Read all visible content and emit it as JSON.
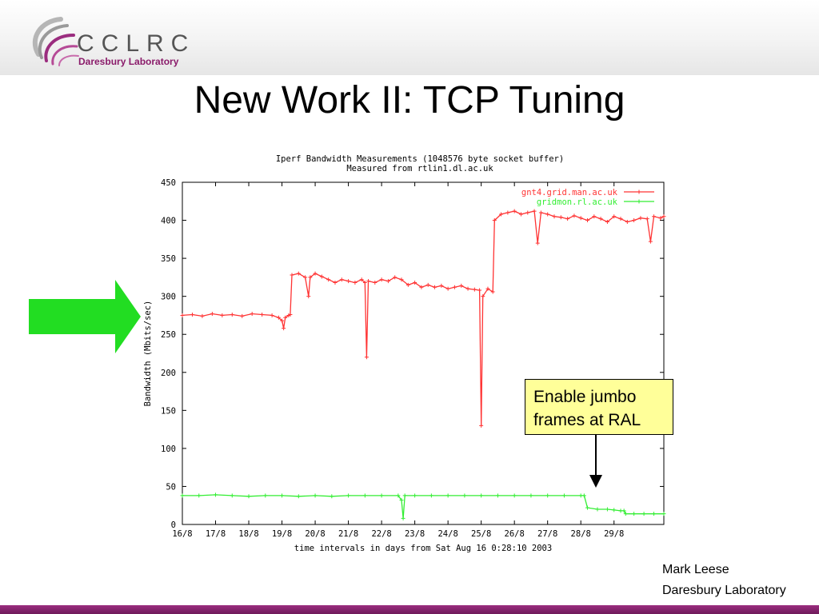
{
  "logo": {
    "word": "CCLRC",
    "subtitle": "Daresbury Laboratory",
    "colors": {
      "primary": "#8a1b6a",
      "text": "#555555"
    }
  },
  "slide": {
    "title": "New Work II: TCP Tuning"
  },
  "arrow": {
    "icon": "green-right-arrow-icon",
    "color": "#22dd22"
  },
  "callout": {
    "line1": "Enable jumbo",
    "line2": "frames at RAL",
    "background": "#ffff99"
  },
  "author": {
    "name": "Mark Leese",
    "org": "Daresbury Laboratory"
  },
  "chart_data": {
    "type": "line",
    "title": "Iperf Bandwidth Measurements (1048576 byte socket buffer)",
    "subtitle": "Measured from rtlin1.dl.ac.uk",
    "xlabel": "time intervals in days from Sat Aug 16  0:28:10 2003",
    "ylabel": "Bandwidth (Mbits/sec)",
    "xlim": [
      0,
      14.5
    ],
    "ylim": [
      0,
      450
    ],
    "x_ticks": [
      0,
      1,
      2,
      3,
      4,
      5,
      6,
      7,
      8,
      9,
      10,
      11,
      12,
      13
    ],
    "x_tick_labels": [
      "16/8",
      "17/8",
      "18/8",
      "19/8",
      "20/8",
      "21/8",
      "22/8",
      "23/8",
      "24/8",
      "25/8",
      "26/8",
      "27/8",
      "28/8",
      "29/8"
    ],
    "y_ticks": [
      0,
      50,
      100,
      150,
      200,
      250,
      300,
      350,
      400,
      450
    ],
    "y_tick_labels": [
      "0",
      "50",
      "100",
      "150",
      "200",
      "250",
      "300",
      "350",
      "400",
      "450"
    ],
    "legend_position": "top-right",
    "grid": false,
    "series": [
      {
        "name": "gnt4.grid.man.ac.uk",
        "color": "#ff3333",
        "points": [
          [
            0.0,
            275
          ],
          [
            0.3,
            276
          ],
          [
            0.6,
            274
          ],
          [
            0.9,
            277
          ],
          [
            1.2,
            275
          ],
          [
            1.5,
            276
          ],
          [
            1.8,
            274
          ],
          [
            2.1,
            277
          ],
          [
            2.4,
            276
          ],
          [
            2.7,
            275
          ],
          [
            2.9,
            272
          ],
          [
            3.0,
            268
          ],
          [
            3.05,
            258
          ],
          [
            3.1,
            272
          ],
          [
            3.2,
            275
          ],
          [
            3.25,
            276
          ],
          [
            3.3,
            328
          ],
          [
            3.5,
            330
          ],
          [
            3.7,
            325
          ],
          [
            3.8,
            300
          ],
          [
            3.85,
            325
          ],
          [
            4.0,
            330
          ],
          [
            4.2,
            326
          ],
          [
            4.4,
            322
          ],
          [
            4.6,
            318
          ],
          [
            4.8,
            322
          ],
          [
            5.0,
            320
          ],
          [
            5.2,
            318
          ],
          [
            5.4,
            322
          ],
          [
            5.5,
            318
          ],
          [
            5.55,
            220
          ],
          [
            5.6,
            320
          ],
          [
            5.8,
            318
          ],
          [
            6.0,
            322
          ],
          [
            6.2,
            320
          ],
          [
            6.4,
            325
          ],
          [
            6.6,
            322
          ],
          [
            6.8,
            315
          ],
          [
            7.0,
            318
          ],
          [
            7.2,
            312
          ],
          [
            7.4,
            315
          ],
          [
            7.6,
            312
          ],
          [
            7.8,
            314
          ],
          [
            8.0,
            310
          ],
          [
            8.2,
            312
          ],
          [
            8.4,
            314
          ],
          [
            8.6,
            310
          ],
          [
            8.8,
            309
          ],
          [
            8.95,
            308
          ],
          [
            9.0,
            130
          ],
          [
            9.05,
            300
          ],
          [
            9.2,
            310
          ],
          [
            9.35,
            306
          ],
          [
            9.4,
            400
          ],
          [
            9.6,
            408
          ],
          [
            9.8,
            410
          ],
          [
            10.0,
            412
          ],
          [
            10.2,
            408
          ],
          [
            10.4,
            410
          ],
          [
            10.6,
            412
          ],
          [
            10.7,
            370
          ],
          [
            10.8,
            410
          ],
          [
            11.0,
            408
          ],
          [
            11.2,
            405
          ],
          [
            11.4,
            404
          ],
          [
            11.6,
            402
          ],
          [
            11.8,
            406
          ],
          [
            12.0,
            403
          ],
          [
            12.2,
            400
          ],
          [
            12.4,
            405
          ],
          [
            12.6,
            402
          ],
          [
            12.8,
            398
          ],
          [
            13.0,
            405
          ],
          [
            13.2,
            402
          ],
          [
            13.4,
            398
          ],
          [
            13.6,
            400
          ],
          [
            13.8,
            403
          ],
          [
            14.0,
            402
          ],
          [
            14.1,
            372
          ],
          [
            14.2,
            405
          ],
          [
            14.4,
            403
          ],
          [
            14.5,
            405
          ]
        ]
      },
      {
        "name": "gridmon.rl.ac.uk",
        "color": "#33ee33",
        "points": [
          [
            0.0,
            38
          ],
          [
            0.5,
            38
          ],
          [
            1.0,
            39
          ],
          [
            1.5,
            38
          ],
          [
            2.0,
            37
          ],
          [
            2.5,
            38
          ],
          [
            3.0,
            38
          ],
          [
            3.5,
            37
          ],
          [
            4.0,
            38
          ],
          [
            4.5,
            37
          ],
          [
            5.0,
            38
          ],
          [
            5.5,
            38
          ],
          [
            6.0,
            38
          ],
          [
            6.5,
            38
          ],
          [
            6.6,
            32
          ],
          [
            6.65,
            8
          ],
          [
            6.7,
            38
          ],
          [
            7.0,
            38
          ],
          [
            7.5,
            38
          ],
          [
            8.0,
            38
          ],
          [
            8.5,
            38
          ],
          [
            9.0,
            38
          ],
          [
            9.5,
            38
          ],
          [
            10.0,
            38
          ],
          [
            10.5,
            38
          ],
          [
            11.0,
            38
          ],
          [
            11.5,
            38
          ],
          [
            12.0,
            38
          ],
          [
            12.1,
            38
          ],
          [
            12.2,
            22
          ],
          [
            12.5,
            20
          ],
          [
            12.8,
            20
          ],
          [
            13.0,
            19
          ],
          [
            13.2,
            18
          ],
          [
            13.3,
            18
          ],
          [
            13.35,
            14
          ],
          [
            13.6,
            14
          ],
          [
            13.9,
            14
          ],
          [
            14.2,
            14
          ],
          [
            14.5,
            14
          ]
        ]
      }
    ]
  }
}
